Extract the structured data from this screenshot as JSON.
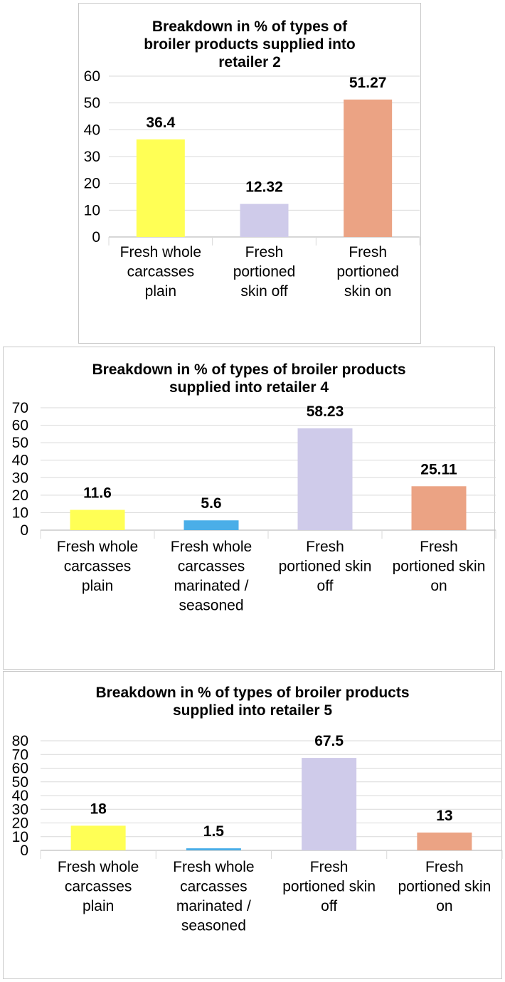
{
  "chart_data": [
    {
      "type": "bar",
      "title": "Breakdown in % of types of\nbroiler products supplied into\nretailer 2",
      "categories": [
        "Fresh whole carcasses plain",
        "Fresh portioned skin off",
        "Fresh portioned skin on"
      ],
      "category_lines": [
        [
          "Fresh whole",
          "carcasses",
          "plain"
        ],
        [
          "Fresh",
          "portioned",
          "skin off"
        ],
        [
          "Fresh",
          "portioned",
          "skin on"
        ]
      ],
      "values": [
        36.4,
        12.32,
        51.27
      ],
      "value_labels": [
        "36.4",
        "12.32",
        "51.27"
      ],
      "colors": [
        "#ffff55",
        "#cfcbea",
        "#eba384"
      ],
      "ylim": [
        0,
        60
      ],
      "yticks": [
        0,
        10,
        20,
        30,
        40,
        50,
        60
      ],
      "grid": true,
      "xlabel": "",
      "ylabel": ""
    },
    {
      "type": "bar",
      "title": "Breakdown in % of types of broiler products\nsupplied into retailer 4",
      "categories": [
        "Fresh whole carcasses plain",
        "Fresh whole carcasses marinated / seasoned",
        "Fresh portioned skin off",
        "Fresh portioned skin on"
      ],
      "category_lines": [
        [
          "Fresh whole",
          "carcasses",
          "plain"
        ],
        [
          "Fresh whole",
          "carcasses",
          "marinated /",
          "seasoned"
        ],
        [
          "Fresh",
          "portioned skin",
          "off"
        ],
        [
          "Fresh",
          "portioned skin",
          "on"
        ]
      ],
      "values": [
        11.6,
        5.6,
        58.23,
        25.11
      ],
      "value_labels": [
        "11.6",
        "5.6",
        "58.23",
        "25.11"
      ],
      "colors": [
        "#ffff55",
        "#4aaee8",
        "#cfcbea",
        "#eba384"
      ],
      "ylim": [
        0,
        70
      ],
      "yticks": [
        0,
        10,
        20,
        30,
        40,
        50,
        60,
        70
      ],
      "grid": true,
      "xlabel": "",
      "ylabel": ""
    },
    {
      "type": "bar",
      "title": "Breakdown in % of types of broiler products\nsupplied into retailer 5",
      "categories": [
        "Fresh whole carcasses plain",
        "Fresh whole carcasses marinated / seasoned",
        "Fresh portioned skin off",
        "Fresh portioned skin on"
      ],
      "category_lines": [
        [
          "Fresh whole",
          "carcasses",
          "plain"
        ],
        [
          "Fresh whole",
          "carcasses",
          "marinated /",
          "seasoned"
        ],
        [
          "Fresh",
          "portioned skin",
          "off"
        ],
        [
          "Fresh",
          "portioned skin",
          "on"
        ]
      ],
      "values": [
        18,
        1.5,
        67.5,
        13
      ],
      "value_labels": [
        "18",
        "1.5",
        "67.5",
        "13"
      ],
      "colors": [
        "#ffff55",
        "#4aaee8",
        "#cfcbea",
        "#eba384"
      ],
      "ylim": [
        0,
        80
      ],
      "yticks": [
        0,
        10,
        20,
        30,
        40,
        50,
        60,
        70,
        80
      ],
      "grid": true,
      "xlabel": "",
      "ylabel": ""
    }
  ]
}
